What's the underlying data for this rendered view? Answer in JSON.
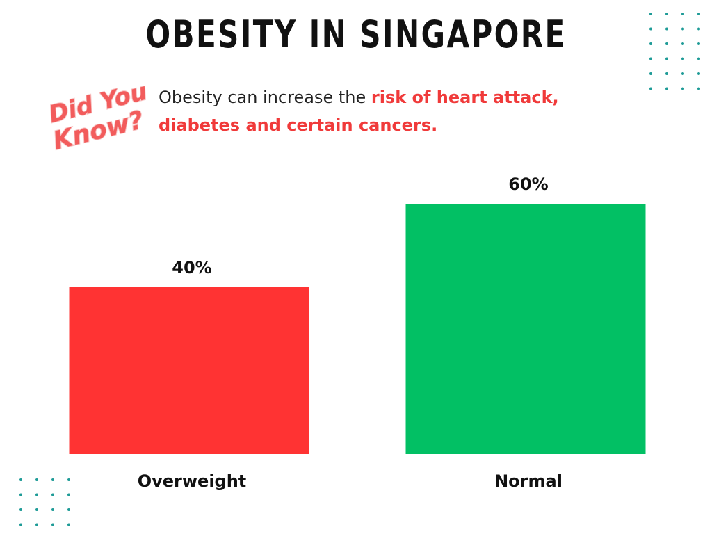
{
  "header": {
    "title": "OBESITY IN SINGAPORE"
  },
  "logo": {
    "line1": "Did You",
    "line2": "Know?",
    "icon": "did-you-know-badge"
  },
  "note": {
    "prefix": "Obesity can increase the ",
    "highlight_line1": "risk of heart attack,",
    "highlight_line2": "diabetes and certain cancers."
  },
  "colors": {
    "overweight": "#ff3333",
    "normal": "#02c064",
    "dots": "#1e9b97",
    "highlight": "#f03a3a"
  },
  "chart_data": {
    "type": "bar",
    "title": "OBESITY IN SINGAPORE",
    "categories": [
      "Overweight",
      "Normal"
    ],
    "values": [
      40,
      60
    ],
    "value_labels": [
      "40%",
      "60%"
    ],
    "ylim": [
      0,
      100
    ],
    "grid": false,
    "legend": "none",
    "xlabel": "",
    "ylabel": ""
  }
}
